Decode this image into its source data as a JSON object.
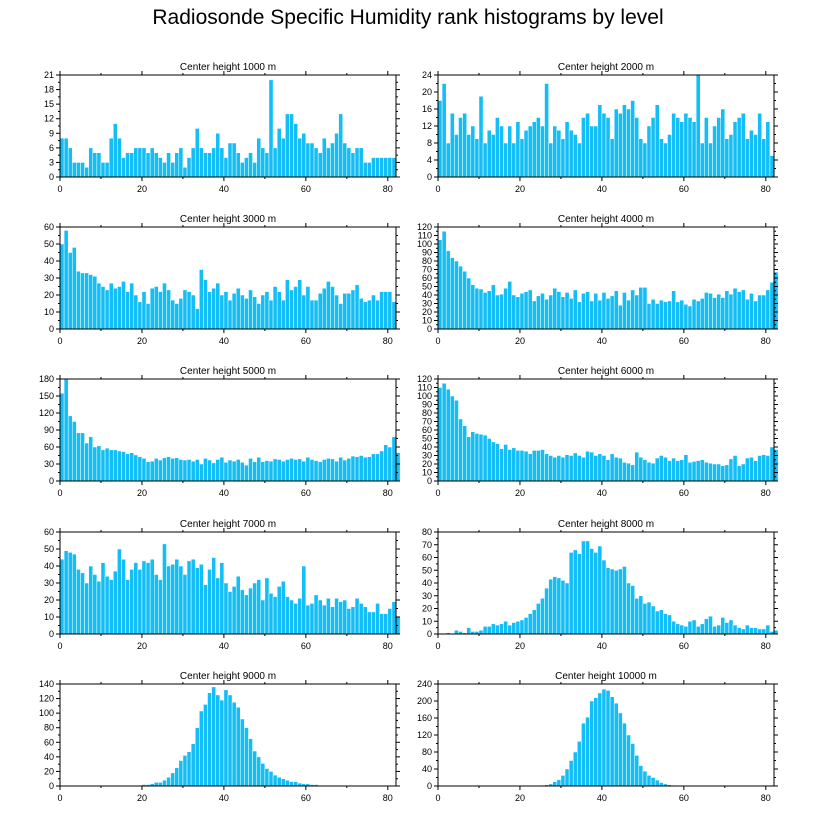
{
  "page": {
    "title": "Radiosonde Specific Humidity rank histograms by level"
  },
  "chart_data": [
    {
      "type": "bar",
      "title": "Center height 1000 m",
      "xlim": [
        0,
        82
      ],
      "ylim": [
        0,
        21
      ],
      "yticks": [
        0,
        3,
        6,
        9,
        12,
        15,
        18,
        21
      ],
      "xticks": [
        0,
        20,
        40,
        60,
        80
      ],
      "values": [
        8,
        8,
        6,
        3,
        3,
        3,
        2,
        6,
        5,
        5,
        3,
        3,
        8,
        11,
        8,
        4,
        5,
        5,
        6,
        6,
        6,
        5,
        6,
        5,
        4,
        3,
        5,
        3,
        5,
        6,
        2,
        4,
        6,
        10,
        6,
        5,
        5,
        6,
        9,
        6,
        4,
        7,
        7,
        5,
        3,
        4,
        5,
        3,
        8,
        6,
        5,
        20,
        6,
        10,
        8,
        13,
        13,
        11,
        8,
        9,
        7,
        7,
        6,
        5,
        8,
        6,
        7,
        9,
        13,
        7,
        6,
        5,
        6,
        6,
        3,
        3,
        4,
        4,
        4,
        4,
        4,
        4
      ]
    },
    {
      "type": "bar",
      "title": "Center height 2000 m",
      "xlim": [
        0,
        82
      ],
      "ylim": [
        0,
        24
      ],
      "yticks": [
        0,
        4,
        8,
        12,
        16,
        20,
        24
      ],
      "xticks": [
        0,
        20,
        40,
        60,
        80
      ],
      "values": [
        18,
        22,
        8,
        15,
        10,
        14,
        15,
        10,
        12,
        9,
        19,
        8,
        11,
        10,
        14,
        12,
        8,
        12,
        8,
        13,
        9,
        11,
        12,
        13,
        14,
        12,
        22,
        8,
        12,
        11,
        9,
        13,
        11,
        10,
        8,
        14,
        15,
        12,
        12,
        17,
        15,
        14,
        9,
        16,
        15,
        17,
        16,
        18,
        14,
        9,
        8,
        12,
        14,
        17,
        9,
        8,
        10,
        15,
        14,
        13,
        15,
        14,
        13,
        24,
        8,
        14,
        8,
        12,
        14,
        16,
        9,
        10,
        13,
        14,
        15,
        9,
        11,
        10,
        15,
        9,
        13,
        5
      ]
    },
    {
      "type": "bar",
      "title": "Center height 3000 m",
      "xlim": [
        0,
        82
      ],
      "ylim": [
        0,
        60
      ],
      "yticks": [
        0,
        10,
        20,
        30,
        40,
        50,
        60
      ],
      "xticks": [
        0,
        20,
        40,
        60,
        80
      ],
      "values": [
        50,
        58,
        45,
        48,
        34,
        33,
        33,
        32,
        31,
        27,
        25,
        23,
        27,
        24,
        25,
        28,
        22,
        27,
        20,
        16,
        22,
        15,
        24,
        25,
        22,
        27,
        23,
        17,
        15,
        18,
        23,
        22,
        20,
        12,
        35,
        29,
        22,
        24,
        27,
        20,
        22,
        17,
        21,
        24,
        20,
        18,
        23,
        19,
        15,
        20,
        22,
        17,
        25,
        22,
        17,
        29,
        23,
        25,
        29,
        20,
        25,
        17,
        17,
        21,
        24,
        28,
        25,
        20,
        15,
        21,
        21,
        23,
        26,
        18,
        16,
        17,
        20,
        17,
        22,
        22,
        22,
        16
      ]
    },
    {
      "type": "bar",
      "title": "Center height 4000 m",
      "xlim": [
        0,
        82
      ],
      "ylim": [
        0,
        120
      ],
      "yticks": [
        0,
        10,
        20,
        30,
        40,
        50,
        60,
        70,
        80,
        90,
        100,
        110,
        120
      ],
      "xticks": [
        0,
        20,
        40,
        60,
        80
      ],
      "values": [
        105,
        115,
        92,
        84,
        80,
        74,
        68,
        60,
        52,
        48,
        47,
        43,
        45,
        52,
        40,
        41,
        48,
        56,
        40,
        38,
        42,
        44,
        46,
        33,
        39,
        42,
        35,
        40,
        48,
        44,
        38,
        43,
        36,
        46,
        32,
        42,
        44,
        33,
        42,
        34,
        43,
        36,
        39,
        45,
        28,
        43,
        34,
        46,
        40,
        49,
        49,
        30,
        35,
        30,
        34,
        32,
        33,
        45,
        32,
        34,
        29,
        27,
        35,
        33,
        36,
        43,
        42,
        37,
        41,
        37,
        45,
        41,
        48,
        44,
        46,
        35,
        42,
        33,
        40,
        40,
        46,
        55,
        67
      ]
    },
    {
      "type": "bar",
      "title": "Center height 5000 m",
      "xlim": [
        0,
        82
      ],
      "ylim": [
        0,
        180
      ],
      "yticks": [
        0,
        30,
        60,
        90,
        120,
        150,
        180
      ],
      "xticks": [
        0,
        20,
        40,
        60,
        80
      ],
      "values": [
        155,
        180,
        115,
        105,
        85,
        85,
        67,
        78,
        60,
        62,
        55,
        58,
        55,
        55,
        53,
        52,
        48,
        50,
        46,
        43,
        40,
        34,
        35,
        40,
        37,
        41,
        43,
        40,
        41,
        38,
        37,
        38,
        35,
        38,
        30,
        40,
        37,
        32,
        38,
        42,
        33,
        37,
        35,
        38,
        33,
        28,
        40,
        34,
        42,
        34,
        36,
        35,
        39,
        38,
        35,
        38,
        40,
        38,
        39,
        35,
        42,
        38,
        36,
        34,
        38,
        40,
        39,
        35,
        42,
        37,
        40,
        44,
        43,
        45,
        42,
        43,
        48,
        48,
        53,
        64,
        60,
        78,
        50
      ]
    },
    {
      "type": "bar",
      "title": "Center height 6000 m",
      "xlim": [
        0,
        82
      ],
      "ylim": [
        0,
        120
      ],
      "yticks": [
        0,
        10,
        20,
        30,
        40,
        50,
        60,
        70,
        80,
        90,
        100,
        110,
        120
      ],
      "xticks": [
        0,
        20,
        40,
        60,
        80
      ],
      "values": [
        110,
        115,
        108,
        100,
        95,
        73,
        65,
        52,
        58,
        56,
        55,
        54,
        50,
        46,
        44,
        38,
        43,
        37,
        39,
        36,
        36,
        35,
        32,
        36,
        36,
        37,
        32,
        30,
        28,
        30,
        28,
        31,
        30,
        33,
        30,
        28,
        35,
        34,
        30,
        32,
        30,
        25,
        32,
        28,
        27,
        22,
        21,
        19,
        34,
        28,
        25,
        22,
        21,
        27,
        30,
        28,
        24,
        27,
        24,
        25,
        31,
        22,
        23,
        24,
        25,
        22,
        21,
        20,
        20,
        18,
        19,
        26,
        30,
        18,
        20,
        27,
        28,
        24,
        30,
        31,
        30,
        40,
        37
      ]
    },
    {
      "type": "bar",
      "title": "Center height 7000 m",
      "xlim": [
        0,
        82
      ],
      "ylim": [
        0,
        60
      ],
      "yticks": [
        0,
        10,
        20,
        30,
        40,
        50,
        60
      ],
      "xticks": [
        0,
        20,
        40,
        60,
        80
      ],
      "values": [
        44,
        49,
        48,
        47,
        38,
        36,
        30,
        40,
        35,
        31,
        42,
        34,
        32,
        37,
        50,
        44,
        32,
        38,
        42,
        38,
        43,
        42,
        44,
        35,
        32,
        53,
        40,
        41,
        44,
        40,
        35,
        43,
        44,
        39,
        41,
        29,
        38,
        45,
        33,
        42,
        30,
        25,
        28,
        34,
        26,
        23,
        27,
        30,
        32,
        20,
        33,
        24,
        22,
        28,
        31,
        22,
        20,
        18,
        21,
        40,
        17,
        18,
        23,
        20,
        17,
        21,
        16,
        21,
        19,
        20,
        15,
        16,
        21,
        18,
        16,
        13,
        13,
        18,
        12,
        12,
        15,
        19,
        10
      ]
    },
    {
      "type": "bar",
      "title": "Center height 8000 m",
      "xlim": [
        0,
        82
      ],
      "ylim": [
        0,
        80
      ],
      "yticks": [
        0,
        10,
        20,
        30,
        40,
        50,
        60,
        70,
        80
      ],
      "xticks": [
        0,
        20,
        40,
        60,
        80
      ],
      "values": [
        0,
        0,
        1,
        0,
        3,
        2,
        1,
        5,
        2,
        2,
        3,
        6,
        6,
        8,
        7,
        8,
        10,
        7,
        9,
        10,
        11,
        13,
        16,
        19,
        24,
        28,
        36,
        43,
        45,
        44,
        42,
        40,
        64,
        66,
        63,
        73,
        73,
        67,
        64,
        69,
        58,
        52,
        51,
        50,
        51,
        53,
        40,
        38,
        28,
        30,
        24,
        25,
        22,
        18,
        19,
        16,
        15,
        10,
        8,
        7,
        6,
        10,
        11,
        6,
        8,
        12,
        14,
        6,
        7,
        13,
        9,
        11,
        7,
        5,
        4,
        7,
        5,
        5,
        4,
        4,
        7,
        2,
        3
      ]
    },
    {
      "type": "bar",
      "title": "Center height 9000 m",
      "xlim": [
        0,
        82
      ],
      "ylim": [
        0,
        140
      ],
      "yticks": [
        0,
        20,
        40,
        60,
        80,
        100,
        120,
        140
      ],
      "xticks": [
        0,
        20,
        40,
        60,
        80
      ],
      "values": [
        0,
        0,
        0,
        0,
        0,
        0,
        0,
        0,
        0,
        0,
        0,
        0,
        0,
        0,
        0,
        0,
        0,
        0,
        0,
        1,
        2,
        2,
        3,
        5,
        5,
        8,
        12,
        18,
        25,
        35,
        42,
        47,
        58,
        80,
        103,
        112,
        128,
        136,
        125,
        118,
        132,
        125,
        115,
        108,
        92,
        80,
        65,
        48,
        40,
        31,
        24,
        20,
        15,
        12,
        10,
        8,
        6,
        6,
        4,
        3,
        3,
        2,
        2,
        1,
        1,
        1,
        1,
        1,
        0,
        0,
        0,
        0,
        0,
        0,
        0,
        0,
        0,
        0,
        0,
        0,
        0,
        0,
        0
      ]
    },
    {
      "type": "bar",
      "title": "Center height 10000 m",
      "xlim": [
        0,
        82
      ],
      "ylim": [
        0,
        240
      ],
      "yticks": [
        0,
        40,
        80,
        120,
        160,
        200,
        240
      ],
      "xticks": [
        0,
        20,
        40,
        60,
        80
      ],
      "values": [
        0,
        0,
        0,
        0,
        0,
        0,
        0,
        0,
        0,
        0,
        0,
        0,
        0,
        0,
        0,
        0,
        0,
        0,
        0,
        0,
        0,
        0,
        0,
        0,
        1,
        2,
        3,
        5,
        10,
        15,
        25,
        40,
        60,
        80,
        105,
        148,
        162,
        200,
        208,
        219,
        228,
        225,
        210,
        195,
        172,
        148,
        120,
        100,
        72,
        48,
        35,
        25,
        20,
        14,
        8,
        5,
        3,
        2,
        1,
        1,
        0,
        0,
        0,
        0,
        0,
        0,
        0,
        0,
        0,
        0,
        0,
        0,
        0,
        0,
        0,
        0,
        0,
        0,
        0,
        0,
        0,
        0,
        0
      ]
    }
  ]
}
